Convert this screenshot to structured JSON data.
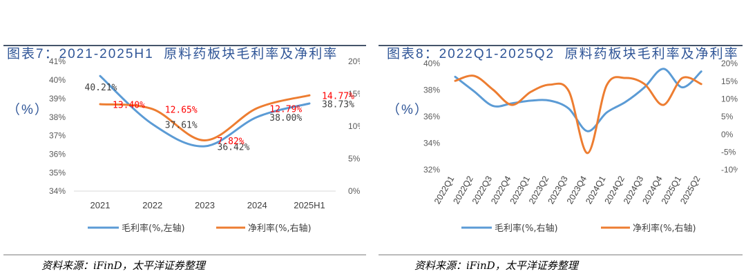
{
  "panels": [
    {
      "source": "资料来源：iFinD，太平洋证券整理"
    },
    {
      "source": "资料来源：iFinD，太平洋证券整理"
    }
  ],
  "colors": {
    "title": "#2f5597",
    "rule": "#44546a",
    "gross_label": "#404040",
    "net_label": "#ff0000",
    "axis_line": "#d9d9d9"
  },
  "chart_data": [
    {
      "type": "line",
      "title": [
        "图表7：2021-2025H1  原料药板块毛利率及净利率",
        "（%）"
      ],
      "categories": [
        "2021",
        "2022",
        "2023",
        "2024",
        "2025H1"
      ],
      "series": [
        {
          "name": "毛利率(%,左轴)",
          "y_axis": "left",
          "color": "#5b9bd5",
          "values": [
            40.21,
            37.61,
            36.42,
            38.0,
            38.73
          ],
          "labels": [
            "40.21%",
            "37.61%",
            "36.42%",
            "38.00%",
            "38.73%"
          ]
        },
        {
          "name": "净利率(%,右轴)",
          "y_axis": "right",
          "color": "#ed7d31",
          "values": [
            13.4,
            12.65,
            7.82,
            12.79,
            14.77
          ],
          "labels": [
            "13.40%",
            "12.65%",
            "7.82%",
            "12.79%",
            "14.77%"
          ]
        }
      ],
      "y_left": {
        "min": 34,
        "max": 41,
        "ticks": [
          34,
          35,
          36,
          37,
          38,
          39,
          40,
          41
        ],
        "tick_labels": [
          "34%",
          "35%",
          "36%",
          "37%",
          "38%",
          "39%",
          "40%",
          "41%"
        ]
      },
      "y_right": {
        "min": 0,
        "max": 20,
        "ticks": [
          0,
          5,
          10,
          15,
          20
        ],
        "tick_labels": [
          "0%",
          "5%",
          "10%",
          "15%",
          "20%"
        ]
      },
      "smooth": true,
      "grid": false,
      "legend": "bottom"
    },
    {
      "type": "line",
      "title": [
        "图表8：2022Q1-2025Q2  原料药板块毛利率及净利率",
        "（%）"
      ],
      "categories": [
        "2022Q1",
        "2022Q2",
        "2022Q3",
        "2022Q4",
        "2023Q1",
        "2023Q2",
        "2023Q3",
        "2023Q4",
        "2024Q1",
        "2024Q2",
        "2024Q3",
        "2024Q4",
        "2025Q1",
        "2025Q2"
      ],
      "series": [
        {
          "name": "毛利率(%,右轴)",
          "y_axis": "left",
          "color": "#5b9bd5",
          "values": [
            39.0,
            37.9,
            36.8,
            37.0,
            37.2,
            37.2,
            36.6,
            34.9,
            36.3,
            37.1,
            38.2,
            39.6,
            38.2,
            39.4
          ]
        },
        {
          "name": "净利率(%,右轴)",
          "y_axis": "right",
          "color": "#ed7d31",
          "values": [
            15.1,
            16.5,
            12.6,
            8.3,
            12.0,
            14.0,
            12.2,
            -5.3,
            13.8,
            15.9,
            14.2,
            8.3,
            15.9,
            14.2
          ]
        }
      ],
      "y_left": {
        "min": 32,
        "max": 40,
        "ticks": [
          32,
          34,
          36,
          38,
          40
        ],
        "tick_labels": [
          "32%",
          "34%",
          "36%",
          "38%",
          "40%"
        ]
      },
      "y_right": {
        "min": -10,
        "max": 20,
        "ticks": [
          -10,
          -5,
          0,
          5,
          10,
          15,
          20
        ],
        "tick_labels": [
          "-10%",
          "-5%",
          "0%",
          "5%",
          "10%",
          "15%",
          "20%"
        ]
      },
      "smooth": true,
      "grid": false,
      "legend": "bottom"
    }
  ]
}
